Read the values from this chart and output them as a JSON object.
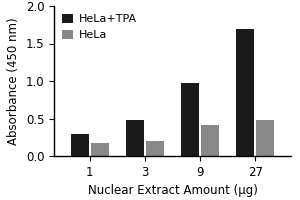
{
  "categories": [
    "1",
    "3",
    "9",
    "27"
  ],
  "hela_tpa_values": [
    0.3,
    0.48,
    0.98,
    1.7
  ],
  "hela_values": [
    0.18,
    0.2,
    0.42,
    0.48
  ],
  "hela_tpa_color": "#1a1a1a",
  "hela_color": "#888888",
  "xlabel": "Nuclear Extract Amount (μg)",
  "ylabel": "Absorbance (450 nm)",
  "ylim": [
    0,
    2.0
  ],
  "yticks": [
    0.0,
    0.5,
    1.0,
    1.5,
    2.0
  ],
  "legend_labels": [
    "HeLa+TPA",
    "HeLa"
  ],
  "bar_width": 0.32,
  "bar_gap": 0.04,
  "background_color": "#ffffff",
  "tick_fontsize": 8.5,
  "label_fontsize": 8.5,
  "legend_fontsize": 8.0
}
